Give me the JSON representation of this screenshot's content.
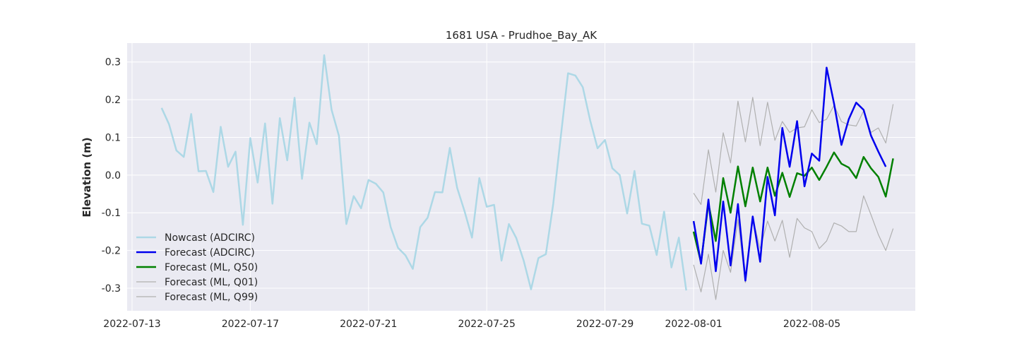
{
  "chart_data": {
    "type": "line",
    "title": "1681 USA - Prudhoe_Bay_AK",
    "xlabel": "",
    "ylabel": "Elevation (m)",
    "xlim": [
      "2022-07-12T20:00",
      "2022-08-08T12:00"
    ],
    "ylim": [
      -0.36,
      0.35
    ],
    "x_ticks": [
      "2022-07-13",
      "2022-07-17",
      "2022-07-21",
      "2022-07-25",
      "2022-07-29",
      "2022-08-01",
      "2022-08-05"
    ],
    "y_ticks": [
      -0.3,
      -0.2,
      -0.1,
      0.0,
      0.1,
      0.2,
      0.3
    ],
    "grid": true,
    "legend": "lower-left",
    "series": [
      {
        "name": "Nowcast (ADCIRC)",
        "color": "#add8e6",
        "x": [
          "2022-07-14T00:00",
          "2022-07-14T06:00",
          "2022-07-14T12:00",
          "2022-07-14T18:00",
          "2022-07-15T00:00",
          "2022-07-15T06:00",
          "2022-07-15T12:00",
          "2022-07-15T18:00",
          "2022-07-16T00:00",
          "2022-07-16T06:00",
          "2022-07-16T12:00",
          "2022-07-16T18:00",
          "2022-07-17T00:00",
          "2022-07-17T06:00",
          "2022-07-17T12:00",
          "2022-07-17T18:00",
          "2022-07-18T00:00",
          "2022-07-18T06:00",
          "2022-07-18T12:00",
          "2022-07-18T18:00",
          "2022-07-19T00:00",
          "2022-07-19T06:00",
          "2022-07-19T12:00",
          "2022-07-19T18:00",
          "2022-07-20T00:00",
          "2022-07-20T06:00",
          "2022-07-20T12:00",
          "2022-07-20T18:00",
          "2022-07-21T00:00",
          "2022-07-21T06:00",
          "2022-07-21T12:00",
          "2022-07-21T18:00",
          "2022-07-22T00:00",
          "2022-07-22T06:00",
          "2022-07-22T12:00",
          "2022-07-22T18:00",
          "2022-07-23T00:00",
          "2022-07-23T06:00",
          "2022-07-23T12:00",
          "2022-07-23T18:00",
          "2022-07-24T00:00",
          "2022-07-24T06:00",
          "2022-07-24T12:00",
          "2022-07-24T18:00",
          "2022-07-25T00:00",
          "2022-07-25T06:00",
          "2022-07-25T12:00",
          "2022-07-25T18:00",
          "2022-07-26T00:00",
          "2022-07-26T06:00",
          "2022-07-26T12:00",
          "2022-07-26T18:00",
          "2022-07-27T00:00",
          "2022-07-27T06:00",
          "2022-07-27T12:00",
          "2022-07-27T18:00",
          "2022-07-28T00:00",
          "2022-07-28T06:00",
          "2022-07-28T12:00",
          "2022-07-28T18:00",
          "2022-07-29T00:00",
          "2022-07-29T06:00",
          "2022-07-29T12:00",
          "2022-07-29T18:00",
          "2022-07-30T00:00",
          "2022-07-30T06:00",
          "2022-07-30T12:00",
          "2022-07-30T18:00",
          "2022-07-31T00:00",
          "2022-07-31T06:00",
          "2022-07-31T12:00",
          "2022-07-31T18:00"
        ],
        "values": [
          0.178,
          0.135,
          0.065,
          0.048,
          0.162,
          0.01,
          0.011,
          -0.045,
          0.128,
          0.022,
          0.062,
          -0.132,
          0.098,
          -0.02,
          0.137,
          -0.076,
          0.151,
          0.039,
          0.205,
          -0.01,
          0.139,
          0.082,
          0.318,
          0.173,
          0.104,
          -0.13,
          -0.056,
          -0.088,
          -0.013,
          -0.023,
          -0.046,
          -0.138,
          -0.193,
          -0.213,
          -0.249,
          -0.138,
          -0.113,
          -0.045,
          -0.046,
          0.072,
          -0.034,
          -0.096,
          -0.166,
          -0.008,
          -0.084,
          -0.079,
          -0.227,
          -0.13,
          -0.167,
          -0.227,
          -0.303,
          -0.22,
          -0.21,
          -0.077,
          0.098,
          0.27,
          0.264,
          0.233,
          0.145,
          0.071,
          0.093,
          0.018,
          0.0,
          -0.102,
          0.011,
          -0.129,
          -0.134,
          -0.212,
          -0.097,
          -0.245,
          -0.166,
          -0.306
        ]
      },
      {
        "name": "Forecast (ADCIRC)",
        "color": "#0000ee",
        "x": [
          "2022-08-01T00:00",
          "2022-08-01T06:00",
          "2022-08-01T12:00",
          "2022-08-01T18:00",
          "2022-08-02T00:00",
          "2022-08-02T06:00",
          "2022-08-02T12:00",
          "2022-08-02T18:00",
          "2022-08-03T00:00",
          "2022-08-03T06:00",
          "2022-08-03T12:00",
          "2022-08-03T18:00",
          "2022-08-04T00:00",
          "2022-08-04T06:00",
          "2022-08-04T12:00",
          "2022-08-04T18:00",
          "2022-08-05T00:00",
          "2022-08-05T06:00",
          "2022-08-05T12:00",
          "2022-08-05T18:00",
          "2022-08-06T00:00",
          "2022-08-06T06:00",
          "2022-08-06T12:00",
          "2022-08-06T18:00",
          "2022-08-07T00:00",
          "2022-08-07T06:00",
          "2022-08-07T12:00"
        ],
        "values": [
          -0.122,
          -0.235,
          -0.065,
          -0.255,
          -0.07,
          -0.24,
          -0.077,
          -0.28,
          -0.11,
          -0.23,
          -0.005,
          -0.107,
          0.125,
          0.022,
          0.143,
          -0.03,
          0.057,
          0.038,
          0.285,
          0.19,
          0.08,
          0.148,
          0.192,
          0.173,
          0.105,
          0.062,
          0.022
        ]
      },
      {
        "name": "Forecast (ML, Q50)",
        "color": "#008000",
        "x": [
          "2022-08-01T00:00",
          "2022-08-01T06:00",
          "2022-08-01T12:00",
          "2022-08-01T18:00",
          "2022-08-02T00:00",
          "2022-08-02T06:00",
          "2022-08-02T12:00",
          "2022-08-02T18:00",
          "2022-08-03T00:00",
          "2022-08-03T06:00",
          "2022-08-03T12:00",
          "2022-08-03T18:00",
          "2022-08-04T00:00",
          "2022-08-04T06:00",
          "2022-08-04T12:00",
          "2022-08-04T18:00",
          "2022-08-05T00:00",
          "2022-08-05T06:00",
          "2022-08-05T12:00",
          "2022-08-05T18:00",
          "2022-08-06T00:00",
          "2022-08-06T06:00",
          "2022-08-06T12:00",
          "2022-08-06T18:00",
          "2022-08-07T00:00",
          "2022-08-07T06:00",
          "2022-08-07T12:00",
          "2022-08-07T18:00"
        ],
        "values": [
          -0.15,
          -0.232,
          -0.075,
          -0.175,
          -0.008,
          -0.1,
          0.023,
          -0.083,
          0.02,
          -0.07,
          0.02,
          -0.055,
          0.006,
          -0.058,
          0.005,
          -0.002,
          0.02,
          -0.013,
          0.022,
          0.06,
          0.03,
          0.02,
          -0.008,
          0.048,
          0.018,
          -0.005,
          -0.057,
          0.044
        ]
      },
      {
        "name": "Forecast (ML, Q01)",
        "color": "#b0b0b0",
        "x": [
          "2022-08-01T00:00",
          "2022-08-01T06:00",
          "2022-08-01T12:00",
          "2022-08-01T18:00",
          "2022-08-02T00:00",
          "2022-08-02T06:00",
          "2022-08-02T12:00",
          "2022-08-02T18:00",
          "2022-08-03T00:00",
          "2022-08-03T06:00",
          "2022-08-03T12:00",
          "2022-08-03T18:00",
          "2022-08-04T00:00",
          "2022-08-04T06:00",
          "2022-08-04T12:00",
          "2022-08-04T18:00",
          "2022-08-05T00:00",
          "2022-08-05T06:00",
          "2022-08-05T12:00",
          "2022-08-05T18:00",
          "2022-08-06T00:00",
          "2022-08-06T06:00",
          "2022-08-06T12:00",
          "2022-08-06T18:00",
          "2022-08-07T00:00",
          "2022-08-07T06:00",
          "2022-08-07T12:00",
          "2022-08-07T18:00"
        ],
        "values": [
          -0.238,
          -0.31,
          -0.21,
          -0.33,
          -0.2,
          -0.258,
          -0.118,
          -0.285,
          -0.115,
          -0.195,
          -0.122,
          -0.175,
          -0.12,
          -0.218,
          -0.115,
          -0.14,
          -0.15,
          -0.195,
          -0.175,
          -0.127,
          -0.135,
          -0.15,
          -0.15,
          -0.055,
          -0.105,
          -0.158,
          -0.2,
          -0.142
        ]
      },
      {
        "name": "Forecast (ML, Q99)",
        "color": "#b0b0b0",
        "x": [
          "2022-08-01T00:00",
          "2022-08-01T06:00",
          "2022-08-01T12:00",
          "2022-08-01T18:00",
          "2022-08-02T00:00",
          "2022-08-02T06:00",
          "2022-08-02T12:00",
          "2022-08-02T18:00",
          "2022-08-03T00:00",
          "2022-08-03T06:00",
          "2022-08-03T12:00",
          "2022-08-03T18:00",
          "2022-08-04T00:00",
          "2022-08-04T06:00",
          "2022-08-04T12:00",
          "2022-08-04T18:00",
          "2022-08-05T00:00",
          "2022-08-05T06:00",
          "2022-08-05T12:00",
          "2022-08-05T18:00",
          "2022-08-06T00:00",
          "2022-08-06T06:00",
          "2022-08-06T12:00",
          "2022-08-06T18:00",
          "2022-08-07T00:00",
          "2022-08-07T06:00",
          "2022-08-07T12:00",
          "2022-08-07T18:00"
        ],
        "values": [
          -0.048,
          -0.078,
          0.067,
          -0.045,
          0.112,
          0.032,
          0.196,
          0.088,
          0.206,
          0.078,
          0.193,
          0.092,
          0.142,
          0.113,
          0.125,
          0.128,
          0.173,
          0.139,
          0.148,
          0.185,
          0.142,
          0.133,
          0.13,
          0.17,
          0.113,
          0.125,
          0.085,
          0.188
        ]
      }
    ]
  }
}
